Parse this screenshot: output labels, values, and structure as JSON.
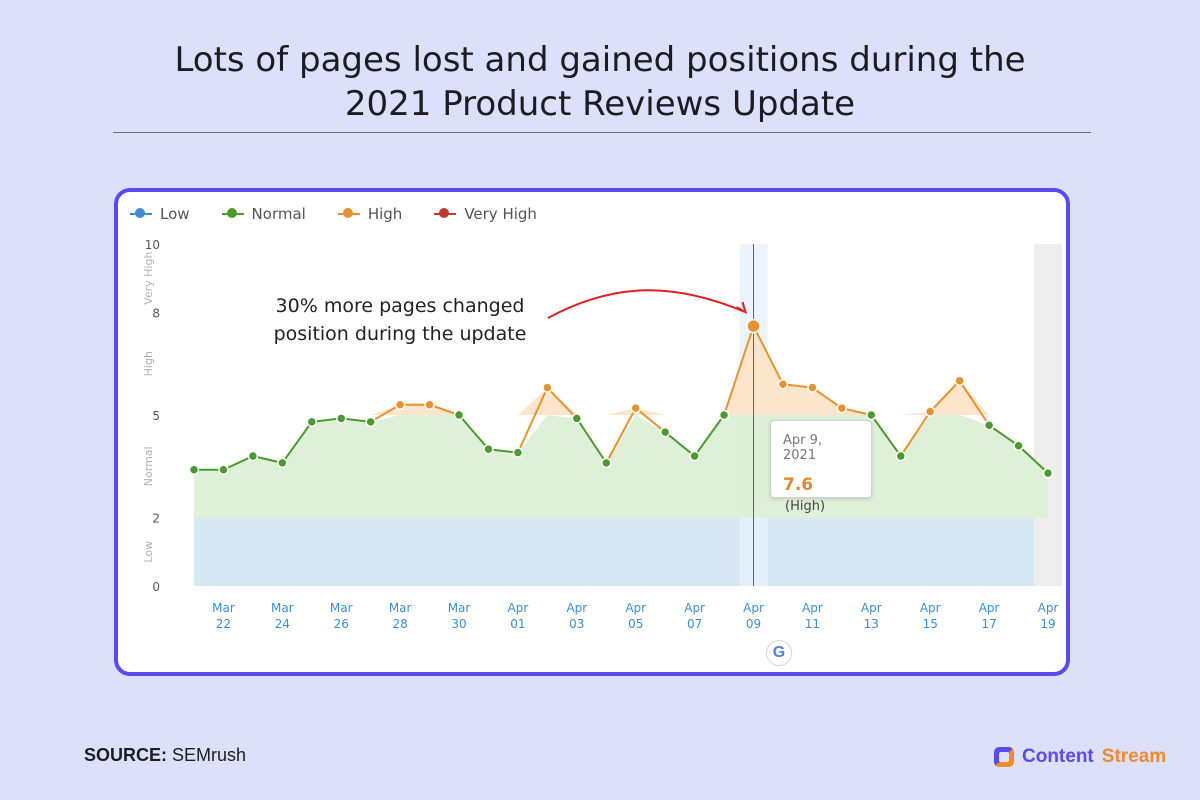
{
  "header": {
    "title_line1": "Lots of pages lost and gained positions during the",
    "title_line2": "2021 Product Reviews Update"
  },
  "legend": [
    {
      "label": "Low",
      "color": "#3b8ed6"
    },
    {
      "label": "Normal",
      "color": "#4a9a2e"
    },
    {
      "label": "High",
      "color": "#e8912e"
    },
    {
      "label": "Very High",
      "color": "#c0392b"
    }
  ],
  "annotation": {
    "line1": "30% more pages changed",
    "line2": "position during the update"
  },
  "tooltip": {
    "date": "Apr 9, 2021",
    "value": "7.6",
    "level": "(High)"
  },
  "google_icon": "google-g-icon",
  "footer": {
    "source_label": "SOURCE:",
    "source_value": "SEMrush",
    "brand_word1": "Content",
    "brand_word2": "Stream",
    "brand_color1": "#5a4af0",
    "brand_color2": "#f08a2a"
  },
  "chart_data": {
    "type": "line",
    "ylim": [
      0,
      10
    ],
    "y_ticks": [
      0,
      2,
      5,
      8,
      10
    ],
    "band_labels": [
      {
        "label": "Low",
        "from": 0,
        "to": 2
      },
      {
        "label": "Normal",
        "from": 2,
        "to": 5
      },
      {
        "label": "High",
        "from": 5,
        "to": 8
      },
      {
        "label": "Very High",
        "from": 8,
        "to": 10
      }
    ],
    "x_ticks": [
      {
        "month": "Mar",
        "day": "22"
      },
      {
        "month": "Mar",
        "day": "24"
      },
      {
        "month": "Mar",
        "day": "26"
      },
      {
        "month": "Mar",
        "day": "28"
      },
      {
        "month": "Mar",
        "day": "30"
      },
      {
        "month": "Apr",
        "day": "01"
      },
      {
        "month": "Apr",
        "day": "03"
      },
      {
        "month": "Apr",
        "day": "05"
      },
      {
        "month": "Apr",
        "day": "07"
      },
      {
        "month": "Apr",
        "day": "09"
      },
      {
        "month": "Apr",
        "day": "11"
      },
      {
        "month": "Apr",
        "day": "13"
      },
      {
        "month": "Apr",
        "day": "15"
      },
      {
        "month": "Apr",
        "day": "17"
      },
      {
        "month": "Apr",
        "day": "19"
      }
    ],
    "x": [
      "Mar 21",
      "Mar 22",
      "Mar 23",
      "Mar 24",
      "Mar 25",
      "Mar 26",
      "Mar 27",
      "Mar 28",
      "Mar 29",
      "Mar 30",
      "Mar 31",
      "Apr 01",
      "Apr 02",
      "Apr 03",
      "Apr 04",
      "Apr 05",
      "Apr 06",
      "Apr 07",
      "Apr 08",
      "Apr 09",
      "Apr 10",
      "Apr 11",
      "Apr 12",
      "Apr 13",
      "Apr 14",
      "Apr 15",
      "Apr 16",
      "Apr 17",
      "Apr 18",
      "Apr 19"
    ],
    "values": [
      3.4,
      3.4,
      3.8,
      3.6,
      4.8,
      4.9,
      4.8,
      5.3,
      5.3,
      5.0,
      4.0,
      3.9,
      5.8,
      4.9,
      3.6,
      5.2,
      4.5,
      3.8,
      5.0,
      7.6,
      5.9,
      5.8,
      5.2,
      5.0,
      3.8,
      5.1,
      6.0,
      4.7,
      4.1,
      3.3
    ],
    "highlight": {
      "x": "Apr 09",
      "value": 7.6
    },
    "colors": {
      "normal": "#4a9a2e",
      "high": "#e8912e",
      "low_band": "#d7e8f5",
      "normal_band": "#dcefd5",
      "high_fill": "#fde4c8",
      "axis_text": "#3b8ed6",
      "annotation_arrow": "#e02020"
    }
  }
}
